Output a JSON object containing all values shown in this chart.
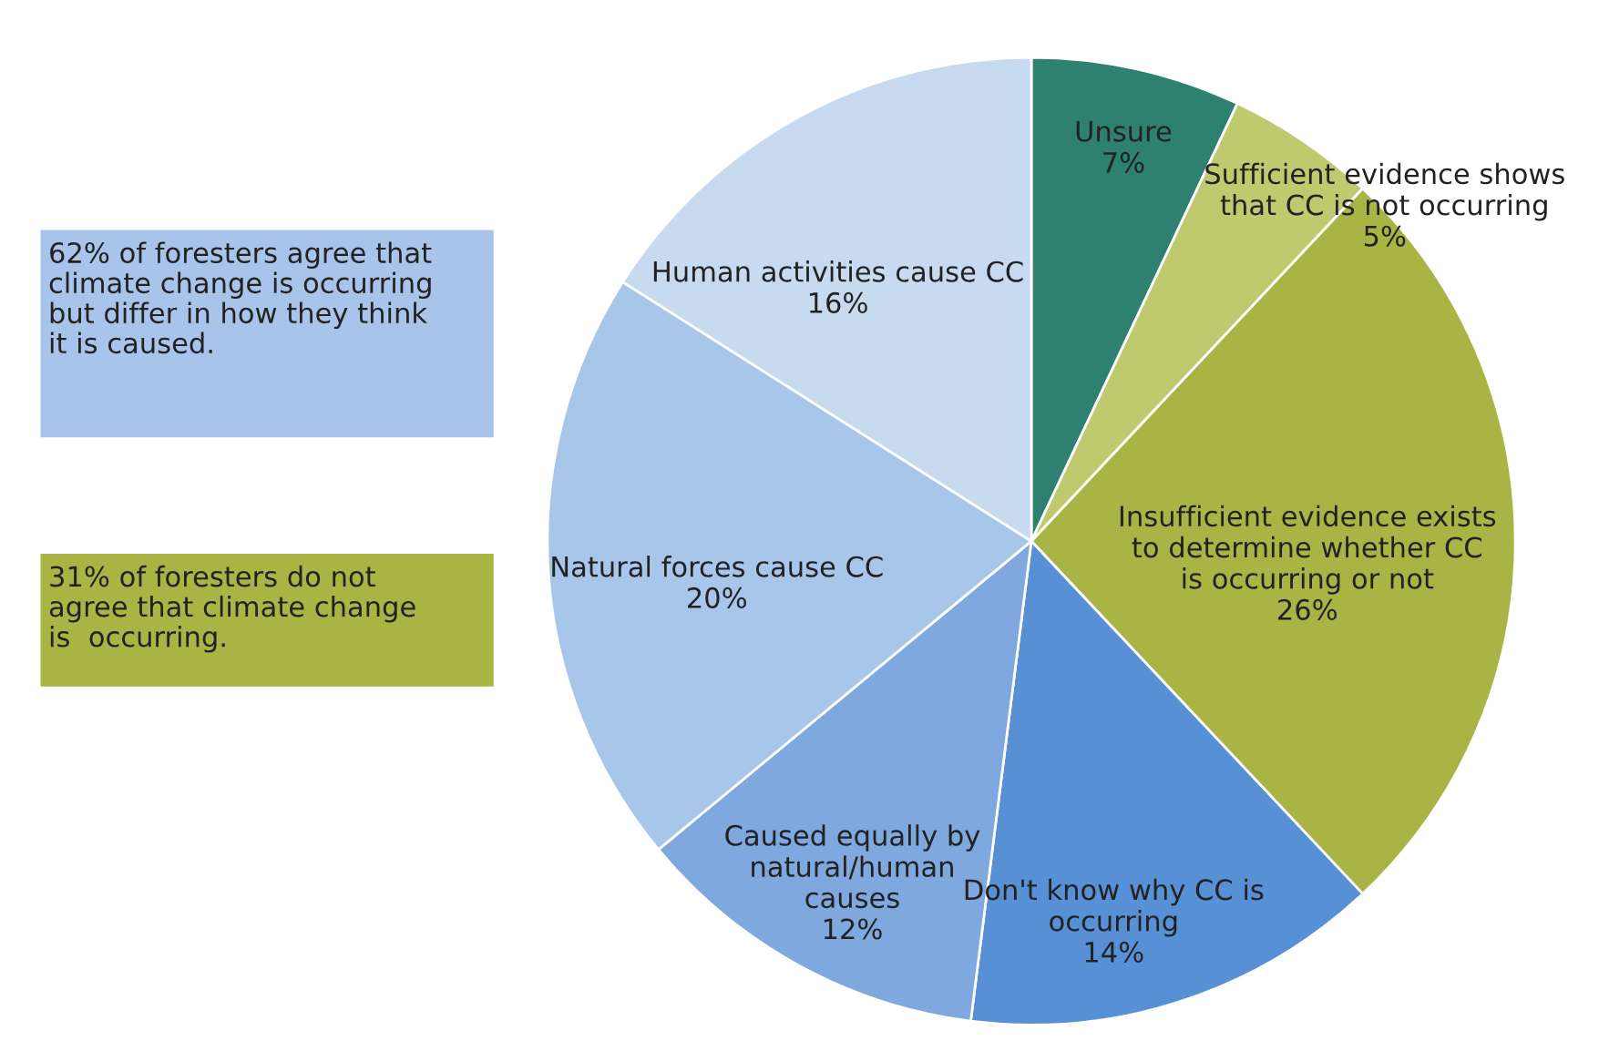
{
  "chart_data": {
    "type": "pie",
    "categories": [
      "Unsure",
      "Sufficient evidence shows\nthat CC is not occurring",
      "Insufficient evidence exists\nto determine whether CC\nis occurring or not",
      "Don't know why CC is\noccurring",
      "Caused equally by\nnatural/human\ncauses",
      "Natural forces cause CC",
      "Human activities cause CC"
    ],
    "values": [
      7,
      5,
      26,
      14,
      12,
      20,
      16
    ],
    "value_labels": [
      "7%",
      "5%",
      "26%",
      "14%",
      "12%",
      "20%",
      "16%"
    ],
    "colors": [
      "#2e8070",
      "#bfc96e",
      "#a8b545",
      "#5890d6",
      "#7ea8de",
      "#a8c6ea",
      "#c8daf0"
    ],
    "annotations": [
      "62% of foresters agree that\nclimate change is occurring\nbut differ in how they think\nit is caused.",
      "31% of foresters do not\nagree that climate change\nis  occurring."
    ],
    "legend": false
  }
}
